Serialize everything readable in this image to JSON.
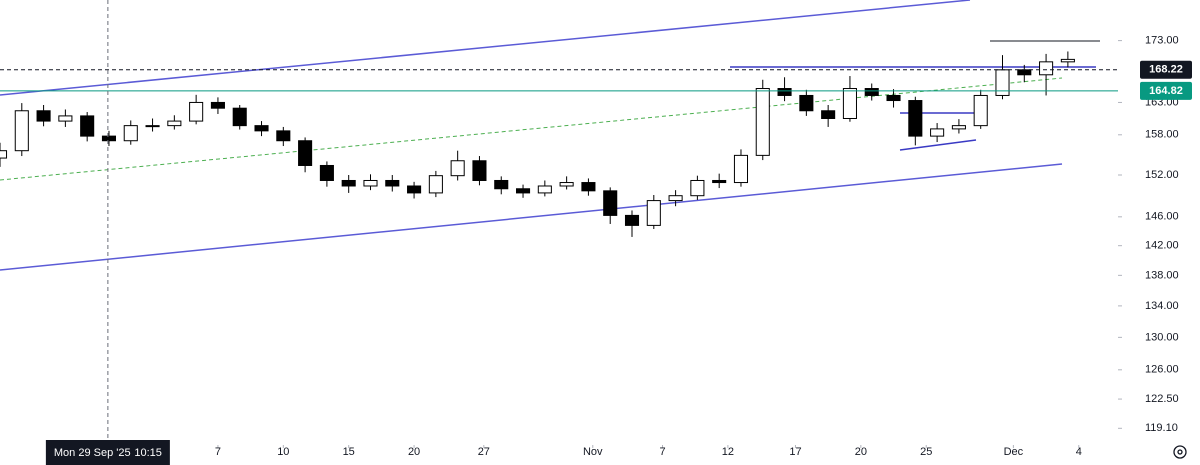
{
  "chart_data": {
    "type": "candlestick",
    "log_scale": true,
    "up_color": "#ffffff",
    "down_color": "#000000",
    "wick_color": "#000000",
    "xlim": [
      0,
      51.3
    ],
    "xticks": [
      {
        "value": 10,
        "label": "7"
      },
      {
        "value": 13,
        "label": "10"
      },
      {
        "value": 16,
        "label": "15"
      },
      {
        "value": 19,
        "label": "20"
      },
      {
        "value": 22.2,
        "label": "27"
      },
      {
        "value": 27.2,
        "label": "Nov"
      },
      {
        "value": 30.4,
        "label": "7"
      },
      {
        "value": 33.4,
        "label": "12"
      },
      {
        "value": 36.5,
        "label": "17"
      },
      {
        "value": 39.5,
        "label": "20"
      },
      {
        "value": 42.5,
        "label": "25"
      },
      {
        "value": 46.5,
        "label": "Dec"
      },
      {
        "value": 49.5,
        "label": "4"
      }
    ],
    "ylim": [
      117.2,
      179.9
    ],
    "yticks": [
      {
        "value": 173,
        "label": "173.00"
      },
      {
        "value": 163,
        "label": "163.00"
      },
      {
        "value": 158,
        "label": "158.00"
      },
      {
        "value": 152,
        "label": "152.00"
      },
      {
        "value": 146,
        "label": "146.00"
      },
      {
        "value": 142,
        "label": "142.00"
      },
      {
        "value": 138,
        "label": "138.00"
      },
      {
        "value": 134,
        "label": "134.00"
      },
      {
        "value": 130,
        "label": "130.00"
      },
      {
        "value": 126,
        "label": "126.00"
      },
      {
        "value": 122.5,
        "label": "122.50"
      },
      {
        "value": 119.1,
        "label": "119.10"
      }
    ],
    "x": [
      0,
      1,
      2,
      3,
      4,
      5,
      6,
      7,
      8,
      9,
      10,
      11,
      12,
      13,
      14,
      15,
      16,
      17,
      18,
      19,
      20,
      21,
      22,
      23,
      24,
      25,
      26,
      27,
      28,
      29,
      30,
      31,
      32,
      33,
      34,
      35,
      36,
      37,
      38,
      39,
      40,
      41,
      42,
      43,
      44,
      45,
      46,
      47,
      48,
      49
    ],
    "open": [
      154.5,
      155.6,
      161.7,
      160.1,
      160.9,
      157.8,
      157.1,
      159.4,
      159.4,
      160.1,
      163.0,
      162.1,
      159.4,
      158.6,
      157.1,
      153.4,
      151.2,
      150.4,
      151.2,
      150.4,
      149.4,
      151.9,
      154.1,
      151.2,
      150.0,
      149.4,
      150.4,
      150.9,
      149.7,
      146.2,
      144.8,
      148.3,
      149.0,
      151.2,
      150.9,
      154.9,
      165.2,
      164.1,
      161.7,
      160.5,
      165.2,
      164.1,
      163.3,
      157.8,
      158.9,
      159.4,
      164.1,
      168.2,
      167.4,
      169.5
    ],
    "high": [
      156.8,
      162.9,
      162.6,
      161.9,
      161.5,
      158.6,
      160.2,
      160.5,
      161.0,
      164.2,
      163.8,
      162.6,
      160.1,
      159.2,
      157.6,
      154.0,
      152.0,
      152.1,
      152.0,
      151.0,
      152.6,
      155.6,
      154.8,
      151.8,
      150.6,
      151.2,
      151.8,
      151.5,
      150.2,
      146.9,
      149.1,
      149.8,
      151.9,
      152.2,
      155.8,
      166.6,
      167.0,
      165.0,
      162.6,
      167.2,
      166.0,
      165.1,
      163.9,
      159.8,
      160.4,
      165.0,
      170.6,
      169.0,
      170.8,
      171.2
    ],
    "low": [
      153.2,
      154.8,
      159.3,
      159.2,
      157.0,
      156.3,
      156.5,
      158.5,
      158.8,
      159.6,
      161.2,
      158.8,
      157.8,
      156.3,
      152.4,
      150.3,
      149.4,
      149.8,
      149.6,
      148.6,
      148.8,
      151.2,
      150.5,
      149.2,
      148.7,
      148.9,
      149.9,
      149.0,
      145.0,
      143.2,
      144.3,
      147.5,
      148.4,
      150.1,
      150.3,
      154.2,
      163.2,
      160.9,
      159.2,
      160.0,
      163.3,
      162.2,
      156.4,
      156.9,
      158.2,
      158.9,
      163.5,
      166.2,
      164.1,
      168.6
    ],
    "close": [
      155.6,
      161.7,
      160.1,
      160.9,
      157.8,
      157.1,
      159.4,
      159.4,
      160.1,
      163.0,
      162.1,
      159.4,
      158.6,
      157.1,
      153.4,
      151.2,
      150.4,
      151.2,
      150.4,
      149.4,
      151.9,
      154.1,
      151.2,
      150.0,
      149.4,
      150.4,
      150.9,
      149.7,
      146.2,
      144.8,
      148.3,
      149.0,
      151.2,
      150.9,
      154.9,
      165.2,
      164.1,
      161.7,
      160.5,
      165.2,
      164.1,
      163.3,
      157.8,
      158.9,
      159.4,
      164.1,
      168.2,
      167.4,
      169.5,
      169.9
    ],
    "last_price": 168.22,
    "last_price_color": "#131722",
    "ref_price": 164.82,
    "ref_price_color": "#089981",
    "crosshair": {
      "x": 4.95,
      "label": "Mon 29 Sep '25",
      "time": "10:15"
    }
  }
}
